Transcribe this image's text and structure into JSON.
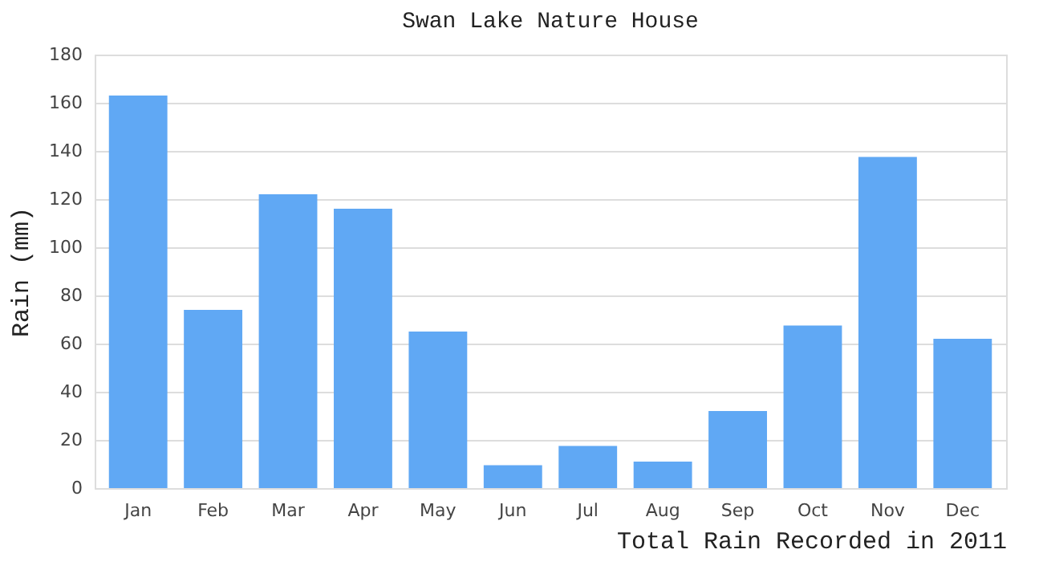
{
  "chart_data": {
    "type": "bar",
    "title": "Swan Lake Nature House",
    "xlabel": "Total Rain Recorded in 2011",
    "ylabel": "Rain (mm)",
    "categories": [
      "Jan",
      "Feb",
      "Mar",
      "Apr",
      "May",
      "Jun",
      "Jul",
      "Aug",
      "Sep",
      "Oct",
      "Nov",
      "Dec"
    ],
    "values": [
      163,
      74,
      122,
      116,
      65,
      9.5,
      17.5,
      11,
      32,
      67.5,
      137.5,
      62
    ],
    "color": "#60a8f4",
    "ylim": [
      0,
      180
    ],
    "yticks": [
      0,
      20,
      40,
      60,
      80,
      100,
      120,
      140,
      160,
      180
    ],
    "grid": "y"
  }
}
